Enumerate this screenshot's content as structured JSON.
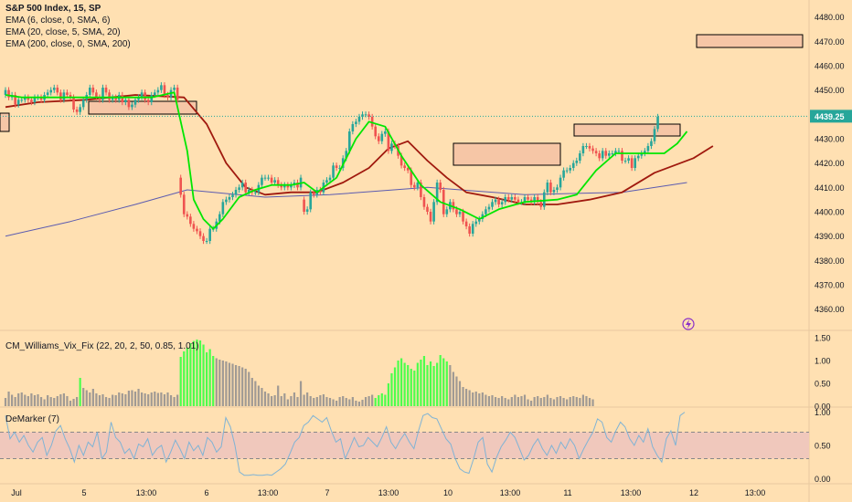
{
  "header": {
    "symbol": "S&P 500 Index, 15, SP",
    "indicators": [
      "EMA (6, close, 0, SMA, 6)",
      "EMA (20, close, 5, SMA, 20)",
      "EMA (200, close, 0, SMA, 200)"
    ]
  },
  "subpanes": {
    "vix_label": "CM_Williams_Vix_Fix (22, 20, 2, 50, 0.85, 1.01)",
    "demarker_label": "DeMarker (7)"
  },
  "price_axis": {
    "ticks": [
      "4480.00",
      "4470.00",
      "4460.00",
      "4450.00",
      "4440.00",
      "4430.00",
      "4420.00",
      "4410.00",
      "4400.00",
      "4390.00",
      "4380.00",
      "4370.00",
      "4360.00"
    ],
    "last_price": "4439.25"
  },
  "vix_axis": {
    "ticks": [
      "1.50",
      "1.00",
      "0.50",
      "0.00"
    ]
  },
  "demarker_axis": {
    "ticks": [
      "1.00",
      "0.50",
      "0.00"
    ]
  },
  "time_axis": {
    "labels": [
      "Jul",
      "5",
      "13:00",
      "6",
      "13:00",
      "7",
      "13:00",
      "10",
      "13:00",
      "11",
      "13:00",
      "12",
      "13:00"
    ]
  },
  "colors": {
    "background": "#FFE0B2",
    "up": "#26A69A",
    "down": "#EF5350",
    "ema6": "#00E600",
    "ema20": "#A0190E",
    "ema200": "#5B5BB0",
    "vix_high": "#4CFF4C",
    "vix_normal": "#A09A94",
    "demarker": "#7FB3D5",
    "zone_fill": "#F6C6A6",
    "last_price_badge": "#26A69A"
  },
  "chart_data": [
    {
      "type": "candlestick",
      "title": "S&P 500 Index, 15, SP",
      "x_labels": [
        "Jul",
        "5",
        "13:00",
        "6",
        "13:00",
        "7",
        "13:00",
        "10",
        "13:00",
        "11",
        "13:00",
        "12",
        "13:00"
      ],
      "ylim": [
        4352,
        4487
      ],
      "last": 4439.25,
      "closes": [
        4450,
        4447,
        4448,
        4444,
        4446,
        4446,
        4447,
        4446,
        4445,
        4447,
        4447,
        4446,
        4448,
        4449,
        4450,
        4451,
        4449,
        4446,
        4449,
        4448,
        4447,
        4442,
        4441,
        4443,
        4446,
        4448,
        4451,
        4449,
        4447,
        4446,
        4451,
        4449,
        4446,
        4447,
        4446,
        4448,
        4445,
        4446,
        4443,
        4444,
        4446,
        4447,
        4449,
        4446,
        4445,
        4448,
        4449,
        4450,
        4452,
        4448,
        4447,
        4450,
        4451,
        4446,
        4407,
        4399,
        4398,
        4395,
        4393,
        4392,
        4390,
        4388,
        4388,
        4393,
        4393,
        4396,
        4399,
        4404,
        4405,
        4406,
        4407,
        4409,
        4410,
        4412,
        4408,
        4409,
        4408,
        4408,
        4411,
        4414,
        4414,
        4414,
        4412,
        4413,
        4411,
        4410,
        4411,
        4410,
        4411,
        4412,
        4410,
        4414,
        4400,
        4401,
        4408,
        4407,
        4409,
        4408,
        4412,
        4413,
        4414,
        4419,
        4418,
        4418,
        4422,
        4425,
        4433,
        4436,
        4437,
        4439,
        4440,
        4440,
        4439,
        4435,
        4431,
        4429,
        4432,
        4433,
        4425,
        4428,
        4427,
        4423,
        4419,
        4418,
        4417,
        4411,
        4410,
        4412,
        4406,
        4402,
        4400,
        4396,
        4404,
        4412,
        4409,
        4399,
        4401,
        4404,
        4401,
        4399,
        4400,
        4396,
        4394,
        4391,
        4395,
        4396,
        4397,
        4399,
        4401,
        4402,
        4404,
        4405,
        4403,
        4404,
        4406,
        4405,
        4406,
        4405,
        4404,
        4404,
        4406,
        4405,
        4404,
        4406,
        4404,
        4402,
        4408,
        4412,
        4408,
        4409,
        4410,
        4414,
        4417,
        4417,
        4418,
        4420,
        4421,
        4424,
        4427,
        4427,
        4426,
        4425,
        4424,
        4422,
        4425,
        4423,
        4424,
        4424,
        4425,
        4425,
        4421,
        4421,
        4422,
        4418,
        4422,
        4423,
        4424,
        4425,
        4427,
        4429,
        4434,
        4439
      ],
      "opens": [
        4448,
        4450,
        4447,
        4448,
        4444,
        4446,
        4446,
        4447,
        4446,
        4445,
        4447,
        4447,
        4446,
        4448,
        4449,
        4450,
        4451,
        4449,
        4446,
        4449,
        4448,
        4447,
        4442,
        4441,
        4443,
        4446,
        4448,
        4451,
        4449,
        4447,
        4446,
        4451,
        4449,
        4446,
        4447,
        4446,
        4448,
        4445,
        4446,
        4443,
        4444,
        4446,
        4447,
        4449,
        4446,
        4445,
        4448,
        4449,
        4450,
        4452,
        4448,
        4447,
        4450,
        4451,
        4414,
        4407,
        4399,
        4398,
        4395,
        4393,
        4392,
        4390,
        4388,
        4388,
        4393,
        4393,
        4396,
        4399,
        4404,
        4405,
        4406,
        4407,
        4409,
        4410,
        4412,
        4408,
        4409,
        4408,
        4408,
        4411,
        4414,
        4414,
        4414,
        4412,
        4413,
        4411,
        4410,
        4411,
        4410,
        4411,
        4412,
        4410,
        4405,
        4400,
        4401,
        4408,
        4407,
        4409,
        4408,
        4412,
        4413,
        4414,
        4419,
        4418,
        4418,
        4422,
        4425,
        4433,
        4436,
        4437,
        4439,
        4440,
        4440,
        4439,
        4435,
        4431,
        4429,
        4432,
        4433,
        4425,
        4428,
        4427,
        4423,
        4419,
        4418,
        4417,
        4411,
        4410,
        4412,
        4406,
        4402,
        4400,
        4396,
        4404,
        4412,
        4409,
        4399,
        4401,
        4404,
        4401,
        4399,
        4400,
        4396,
        4394,
        4391,
        4395,
        4396,
        4397,
        4399,
        4401,
        4402,
        4404,
        4405,
        4403,
        4404,
        4406,
        4405,
        4406,
        4405,
        4404,
        4404,
        4406,
        4405,
        4404,
        4406,
        4404,
        4402,
        4408,
        4412,
        4408,
        4409,
        4410,
        4414,
        4417,
        4417,
        4418,
        4420,
        4421,
        4424,
        4427,
        4427,
        4426,
        4425,
        4424,
        4422,
        4425,
        4423,
        4424,
        4424,
        4425,
        4425,
        4421,
        4421,
        4422,
        4418,
        4422,
        4423,
        4424,
        4425,
        4427,
        4429,
        4434
      ]
    },
    {
      "type": "line",
      "series": [
        {
          "name": "EMA (6, close, 0, SMA, 6)",
          "values": [
            [
              0,
              4448
            ],
            [
              5,
              4447
            ],
            [
              20,
              4447
            ],
            [
              30,
              4447
            ],
            [
              45,
              4447
            ],
            [
              52,
              4449
            ],
            [
              56,
              4425
            ],
            [
              58,
              4405
            ],
            [
              61,
              4397
            ],
            [
              64,
              4393
            ],
            [
              67,
              4397
            ],
            [
              72,
              4406
            ],
            [
              77,
              4409
            ],
            [
              82,
              4411
            ],
            [
              88,
              4411
            ],
            [
              92,
              4412
            ],
            [
              96,
              4408
            ],
            [
              102,
              4414
            ],
            [
              108,
              4430
            ],
            [
              112,
              4437
            ],
            [
              117,
              4435
            ],
            [
              122,
              4423
            ],
            [
              128,
              4411
            ],
            [
              134,
              4404
            ],
            [
              140,
              4401
            ],
            [
              146,
              4397
            ],
            [
              152,
              4401
            ],
            [
              160,
              4404
            ],
            [
              170,
              4405
            ],
            [
              176,
              4407
            ],
            [
              182,
              4417
            ],
            [
              188,
              4424
            ],
            [
              196,
              4424
            ],
            [
              203,
              4424
            ],
            [
              207,
              4428
            ],
            [
              210,
              4433
            ]
          ]
        },
        {
          "name": "EMA (20, close, 5, SMA, 20)",
          "values": [
            [
              0,
              4443
            ],
            [
              10,
              4445
            ],
            [
              25,
              4446
            ],
            [
              40,
              4448
            ],
            [
              55,
              4447
            ],
            [
              62,
              4436
            ],
            [
              68,
              4420
            ],
            [
              74,
              4410
            ],
            [
              80,
              4407
            ],
            [
              88,
              4408
            ],
            [
              96,
              4408
            ],
            [
              104,
              4412
            ],
            [
              112,
              4418
            ],
            [
              118,
              4426
            ],
            [
              124,
              4429
            ],
            [
              130,
              4421
            ],
            [
              136,
              4414
            ],
            [
              142,
              4408
            ],
            [
              150,
              4406
            ],
            [
              160,
              4403
            ],
            [
              170,
              4403
            ],
            [
              180,
              4405
            ],
            [
              190,
              4408
            ],
            [
              200,
              4416
            ],
            [
              206,
              4419
            ],
            [
              212,
              4422
            ],
            [
              218,
              4427
            ]
          ]
        },
        {
          "name": "EMA (200, close, 0, SMA, 200)",
          "values": [
            [
              0,
              4390
            ],
            [
              20,
              4396
            ],
            [
              40,
              4403
            ],
            [
              56,
              4409
            ],
            [
              80,
              4406
            ],
            [
              100,
              4407
            ],
            [
              130,
              4410
            ],
            [
              160,
              4407
            ],
            [
              190,
              4408
            ],
            [
              210,
              4412
            ]
          ]
        }
      ]
    },
    {
      "type": "bar",
      "title": "CM_Williams_Vix_Fix (22, 20, 2, 50, 0.85, 1.01)",
      "ylim": [
        0,
        1.6
      ],
      "values": [
        0.18,
        0.32,
        0.25,
        0.2,
        0.28,
        0.3,
        0.25,
        0.22,
        0.28,
        0.24,
        0.26,
        0.2,
        0.15,
        0.24,
        0.2,
        0.18,
        0.22,
        0.26,
        0.28,
        0.22,
        0.12,
        0.16,
        0.2,
        0.62,
        0.4,
        0.35,
        0.3,
        0.38,
        0.28,
        0.24,
        0.26,
        0.2,
        0.18,
        0.25,
        0.24,
        0.3,
        0.28,
        0.26,
        0.34,
        0.35,
        0.32,
        0.38,
        0.3,
        0.28,
        0.26,
        0.3,
        0.32,
        0.29,
        0.3,
        0.26,
        0.3,
        0.24,
        0.2,
        0.25,
        1.08,
        1.2,
        1.28,
        1.38,
        1.43,
        1.46,
        1.44,
        1.35,
        1.18,
        1.25,
        1.1,
        1.05,
        1.02,
        1.0,
        0.98,
        0.95,
        0.93,
        0.9,
        0.88,
        0.85,
        0.82,
        0.75,
        0.62,
        0.55,
        0.45,
        0.4,
        0.32,
        0.28,
        0.22,
        0.24,
        0.45,
        0.22,
        0.28,
        0.15,
        0.22,
        0.3,
        0.2,
        0.55,
        0.25,
        0.3,
        0.22,
        0.18,
        0.2,
        0.24,
        0.26,
        0.2,
        0.18,
        0.15,
        0.12,
        0.2,
        0.22,
        0.18,
        0.15,
        0.2,
        0.12,
        0.1,
        0.14,
        0.2,
        0.22,
        0.25,
        0.18,
        0.24,
        0.28,
        0.25,
        0.5,
        0.72,
        0.85,
        1.0,
        1.05,
        0.95,
        0.9,
        0.82,
        0.78,
        0.95,
        1.02,
        1.1,
        0.9,
        0.98,
        0.88,
        0.95,
        1.12,
        1.05,
        0.98,
        0.9,
        0.75,
        0.65,
        0.55,
        0.42,
        0.38,
        0.35,
        0.3,
        0.32,
        0.28,
        0.3,
        0.25,
        0.22,
        0.24,
        0.2,
        0.18,
        0.22,
        0.18,
        0.15,
        0.2,
        0.25,
        0.2,
        0.22,
        0.25,
        0.15,
        0.12,
        0.2,
        0.22,
        0.18,
        0.2,
        0.25,
        0.18,
        0.15,
        0.2,
        0.22,
        0.18,
        0.15,
        0.2,
        0.22,
        0.2,
        0.18,
        0.25,
        0.22,
        0.18,
        0.15
      ],
      "highlight": [
        23,
        54,
        55,
        56,
        57,
        58,
        59,
        60,
        61,
        62,
        63,
        64,
        114,
        115,
        116,
        117,
        118,
        119,
        120,
        121,
        122,
        123,
        124,
        125,
        126,
        127,
        128,
        129,
        130,
        131,
        132,
        133,
        134,
        135,
        136
      ]
    },
    {
      "type": "line",
      "title": "DeMarker (7)",
      "ylim": [
        -0.05,
        1.05
      ],
      "band": [
        0.3,
        0.7
      ],
      "values": [
        0.95,
        0.6,
        0.7,
        0.55,
        0.65,
        0.5,
        0.4,
        0.55,
        0.62,
        0.35,
        0.5,
        0.72,
        0.8,
        0.6,
        0.45,
        0.25,
        0.5,
        0.35,
        0.55,
        0.48,
        0.7,
        0.3,
        0.4,
        0.85,
        0.62,
        0.55,
        0.38,
        0.45,
        0.3,
        0.52,
        0.48,
        0.6,
        0.35,
        0.45,
        0.5,
        0.25,
        0.4,
        0.58,
        0.45,
        0.3,
        0.55,
        0.42,
        0.5,
        0.35,
        0.62,
        0.55,
        0.4,
        0.48,
        0.92,
        0.78,
        0.5,
        0.1,
        0.05,
        0.05,
        0.06,
        0.05,
        0.05,
        0.06,
        0.05,
        0.1,
        0.15,
        0.22,
        0.38,
        0.55,
        0.62,
        0.8,
        0.85,
        0.95,
        0.9,
        0.85,
        0.92,
        0.72,
        0.55,
        0.6,
        0.3,
        0.45,
        0.62,
        0.48,
        0.5,
        0.62,
        0.55,
        0.48,
        0.62,
        0.78,
        0.55,
        0.45,
        0.58,
        0.68,
        0.55,
        0.45,
        0.72,
        0.95,
        0.98,
        0.92,
        0.9,
        0.75,
        0.6,
        0.52,
        0.3,
        0.15,
        0.1,
        0.08,
        0.3,
        0.55,
        0.62,
        0.22,
        0.1,
        0.32,
        0.48,
        0.58,
        0.7,
        0.62,
        0.45,
        0.28,
        0.35,
        0.5,
        0.6,
        0.45,
        0.35,
        0.5,
        0.38,
        0.55,
        0.45,
        0.6,
        0.5,
        0.3,
        0.45,
        0.58,
        0.7,
        0.9,
        0.85,
        0.62,
        0.55,
        0.72,
        0.85,
        0.78,
        0.6,
        0.5,
        0.65,
        0.55,
        0.75,
        0.48,
        0.35,
        0.25,
        0.6,
        0.72,
        0.5,
        0.95,
        1.0
      ]
    }
  ]
}
